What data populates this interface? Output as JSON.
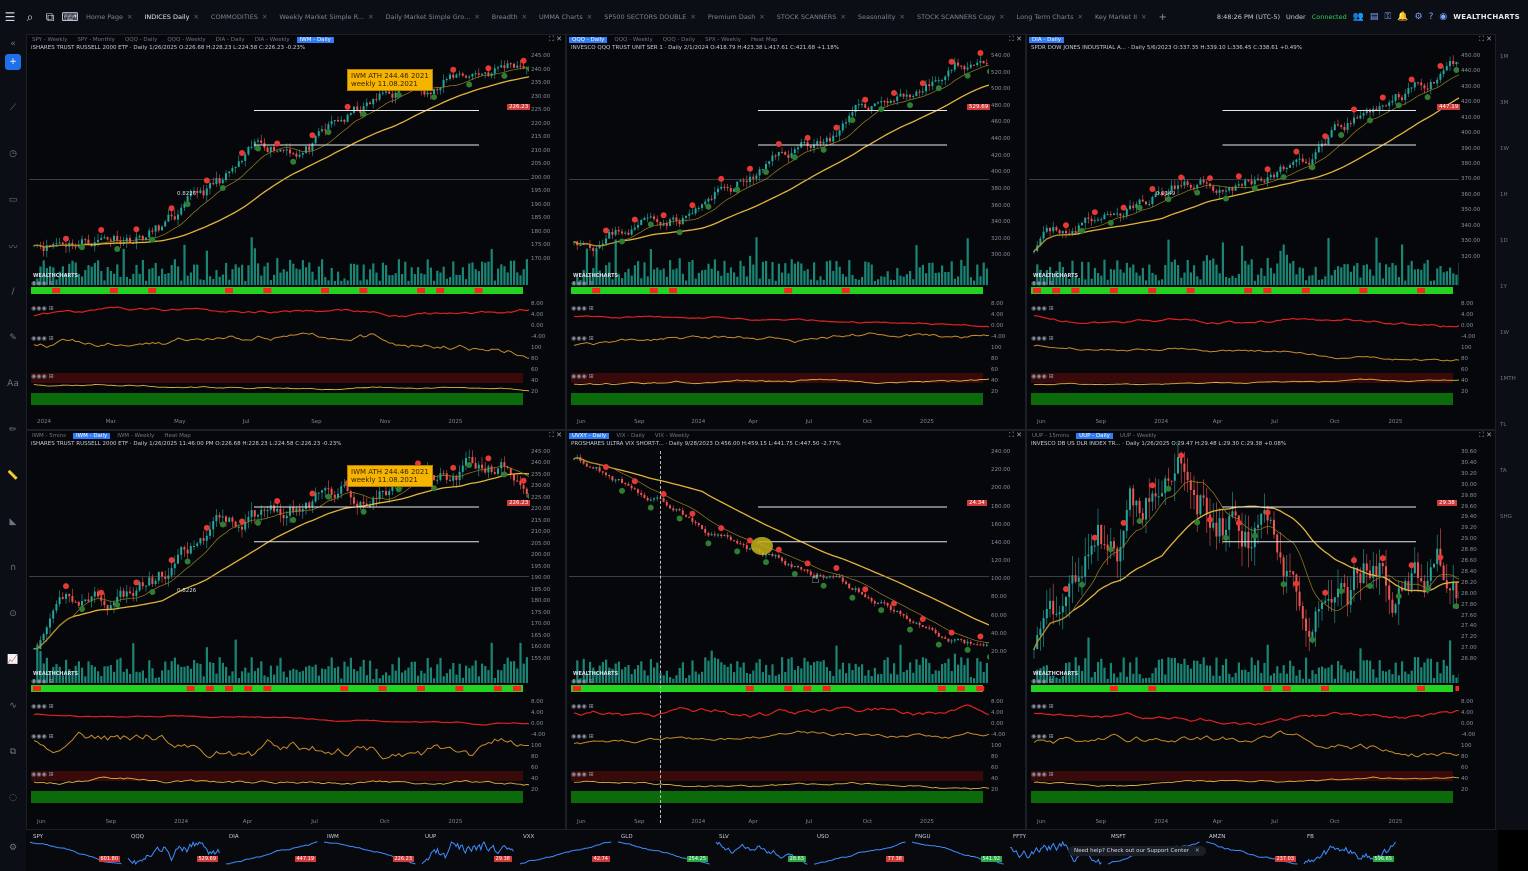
{
  "tabs": [
    {
      "label": "Home Page",
      "active": false
    },
    {
      "label": "INDICES Daily",
      "active": true
    },
    {
      "label": "COMMODITIES",
      "active": false
    },
    {
      "label": "Weekly Market Simple R...",
      "active": false
    },
    {
      "label": "Daily Market Simple Gro...",
      "active": false
    },
    {
      "label": "Breadth",
      "active": false
    },
    {
      "label": "UMMA Charts",
      "active": false
    },
    {
      "label": "SP500 SECTORS DOUBLE",
      "active": false
    },
    {
      "label": "Premium Dash",
      "active": false
    },
    {
      "label": "STOCK SCANNERS",
      "active": false
    },
    {
      "label": "Seasonality",
      "active": false
    },
    {
      "label": "STOCK SCANNERS Copy",
      "active": false
    },
    {
      "label": "Long Term Charts",
      "active": false
    },
    {
      "label": "Key Market II",
      "active": false
    }
  ],
  "topright": {
    "clock": "8:48:26 PM (UTC-5)",
    "mode": "Under",
    "status": "Connected",
    "logo": "WEALTHCHARTS"
  },
  "panels": [
    {
      "tabs": [
        "SPY - Weekly",
        "SPY - Monthly",
        "QQQ - Daily",
        "QQQ - Weekly",
        "DIA - Daily",
        "DIA - Weekly",
        "IWM - Daily"
      ],
      "active": "IWM - Daily",
      "title": "iSHARES TRUST RUSSELL 2000 ETF · Daily 1/26/2025 O:226.68 H:228.23 L:224.58 C:226.23 -0.23%",
      "annotation": [
        "IWM ATH 244.46 2021",
        "weekly 11.08.2021"
      ],
      "pricetag": "226.23",
      "axis": [
        "245.00",
        "240.00",
        "235.00",
        "230.00",
        "225.00",
        "220.00",
        "215.00",
        "210.00",
        "205.00",
        "200.00",
        "195.00",
        "190.00",
        "185.00",
        "180.00",
        "175.00",
        "170.00"
      ],
      "xlabels": [
        "2024",
        "Mar",
        "May",
        "Jul",
        "Sep",
        "Nov",
        "2025"
      ],
      "level": "0.8226"
    },
    {
      "tabs": [
        "QQQ - Daily",
        "QQQ - Weekly",
        "QQQ - Daily",
        "SPX - Weekly",
        "Heat Map"
      ],
      "active": "QQQ - Daily",
      "title": "INVESCO QQQ TRUST UNIT SER 1 · Daily 2/1/2024 O:418.79 H:423.38 L:417.61 C:421.68 +1.18%",
      "annotation": [],
      "pricetag": "529.69",
      "axis": [
        "540.00",
        "520.00",
        "500.00",
        "480.00",
        "460.00",
        "440.00",
        "420.00",
        "400.00",
        "380.00",
        "360.00",
        "340.00",
        "320.00",
        "300.00"
      ],
      "xlabels": [
        "Jun",
        "Sep",
        "2024",
        "Apr",
        "Jul",
        "Oct",
        "2025"
      ],
      "level": ""
    },
    {
      "tabs": [
        "DIA - Daily"
      ],
      "active": "DIA - Daily",
      "title": "SPDR DOW JONES INDUSTRIAL A... · Daily 5/6/2023 O:337.35 H:339.10 L:336.45 C:338.61 +0.49%",
      "annotation": [],
      "pricetag": "447.19",
      "axis": [
        "450.00",
        "440.00",
        "430.00",
        "420.00",
        "410.00",
        "400.00",
        "390.00",
        "380.00",
        "370.00",
        "360.00",
        "350.00",
        "340.00",
        "330.00",
        "320.00"
      ],
      "xlabels": [
        "Jun",
        "Sep",
        "2024",
        "Apr",
        "Jul",
        "Oct",
        "2025"
      ],
      "level": "0.9149"
    },
    {
      "tabs": [
        "IWM - 5mins",
        "IWM - Daily",
        "IWM - Weekly",
        "Heat Map"
      ],
      "active": "IWM - Daily",
      "title": "iSHARES TRUST RUSSELL 2000 ETF · Daily 1/26/2025 11:46:00 PM O:226.68 H:228.23 L:224.58 C:226.23 -0.23%",
      "annotation": [
        "IWM ATH 244.46 2021",
        "weekly 11.08.2021"
      ],
      "pricetag": "226.23",
      "axis": [
        "245.00",
        "240.00",
        "235.00",
        "230.00",
        "225.00",
        "220.00",
        "215.00",
        "210.00",
        "205.00",
        "200.00",
        "195.00",
        "190.00",
        "185.00",
        "180.00",
        "175.00",
        "170.00",
        "165.00",
        "160.00",
        "155.00"
      ],
      "xlabels": [
        "Jun",
        "Sep",
        "2024",
        "Apr",
        "Jul",
        "Oct",
        "2025"
      ],
      "level": "0.8226"
    },
    {
      "tabs": [
        "UVXY - Daily",
        "VIX - Daily",
        "VIX - Weekly"
      ],
      "active": "UVXY - Daily",
      "title": "PROSHARES ULTRA VIX SHORT-T... · Daily 9/28/2023 O:456.00 H:459.15 L:441.75 C:447.50 -2.77%",
      "annotation": [],
      "pricetag": "24.34",
      "axis": [
        "240.00",
        "220.00",
        "200.00",
        "180.00",
        "160.00",
        "140.00",
        "120.00",
        "100.00",
        "80.00",
        "60.00",
        "40.00",
        "20.00"
      ],
      "xlabels": [
        "Jun",
        "Sep",
        "2024",
        "Apr",
        "Jul",
        "Oct",
        "2025"
      ],
      "level": ""
    },
    {
      "tabs": [
        "UUP - 15mins",
        "UUP - Daily",
        "UUP - Weekly"
      ],
      "active": "UUP - Daily",
      "title": "INVESCO DB US DLR INDEX TR... · Daily 1/26/2025 O:29.47 H:29.48 L:29.30 C:29.38 +0.08%",
      "annotation": [],
      "pricetag": "29.38",
      "axis": [
        "30.60",
        "30.40",
        "30.20",
        "30.00",
        "29.80",
        "29.60",
        "29.40",
        "29.20",
        "29.00",
        "28.80",
        "28.60",
        "28.40",
        "28.20",
        "28.00",
        "27.80",
        "27.60",
        "27.40",
        "27.20",
        "27.00",
        "26.80"
      ],
      "xlabels": [
        "Jun",
        "Sep",
        "2024",
        "Apr",
        "Jul",
        "Oct",
        "2025"
      ],
      "level": ""
    }
  ],
  "indicator_labels": [
    "8.00",
    "4.00",
    "0.00",
    "-4.00",
    "100",
    "80",
    "60",
    "40",
    "20"
  ],
  "bottom": [
    {
      "sym": "SPY",
      "val": "601.80",
      "color": "#d23a3a"
    },
    {
      "sym": "QQQ",
      "val": "529.69",
      "color": "#d23a3a"
    },
    {
      "sym": "DIA",
      "val": "447.19",
      "color": "#d23a3a"
    },
    {
      "sym": "IWM",
      "val": "226.23",
      "color": "#d23a3a"
    },
    {
      "sym": "UUP",
      "val": "29.38",
      "color": "#d23a3a"
    },
    {
      "sym": "VXX",
      "val": "42.74",
      "color": "#d23a3a"
    },
    {
      "sym": "GLD",
      "val": "254.25",
      "color": "#27a844"
    },
    {
      "sym": "SLV",
      "val": "28.63",
      "color": "#27a844"
    },
    {
      "sym": "USO",
      "val": "77.38",
      "color": "#d23a3a"
    },
    {
      "sym": "FNGU",
      "val": "541.92",
      "color": "#27a844"
    },
    {
      "sym": "FFTY",
      "val": "",
      "color": "#27a844"
    },
    {
      "sym": "MSFT",
      "val": "",
      "color": "#27a844"
    },
    {
      "sym": "AMZN",
      "val": "237.03",
      "color": "#d23a3a"
    },
    {
      "sym": "FB",
      "val": "596.65",
      "color": "#27a844"
    }
  ],
  "help": "Need help? Check out our Support Center",
  "sidebar_right_labels": [
    "1M",
    "3M",
    "1W",
    "1H",
    "1D",
    "1Y",
    "1W",
    "1MTH",
    "TL",
    "TA",
    "SHG"
  ],
  "colors": {
    "up": "#26a69a",
    "down": "#ef5350",
    "vol_bar": "#1fa58f",
    "green_band": "#22d31f",
    "red_band": "#ff2020",
    "ma": "#e3b33b"
  }
}
